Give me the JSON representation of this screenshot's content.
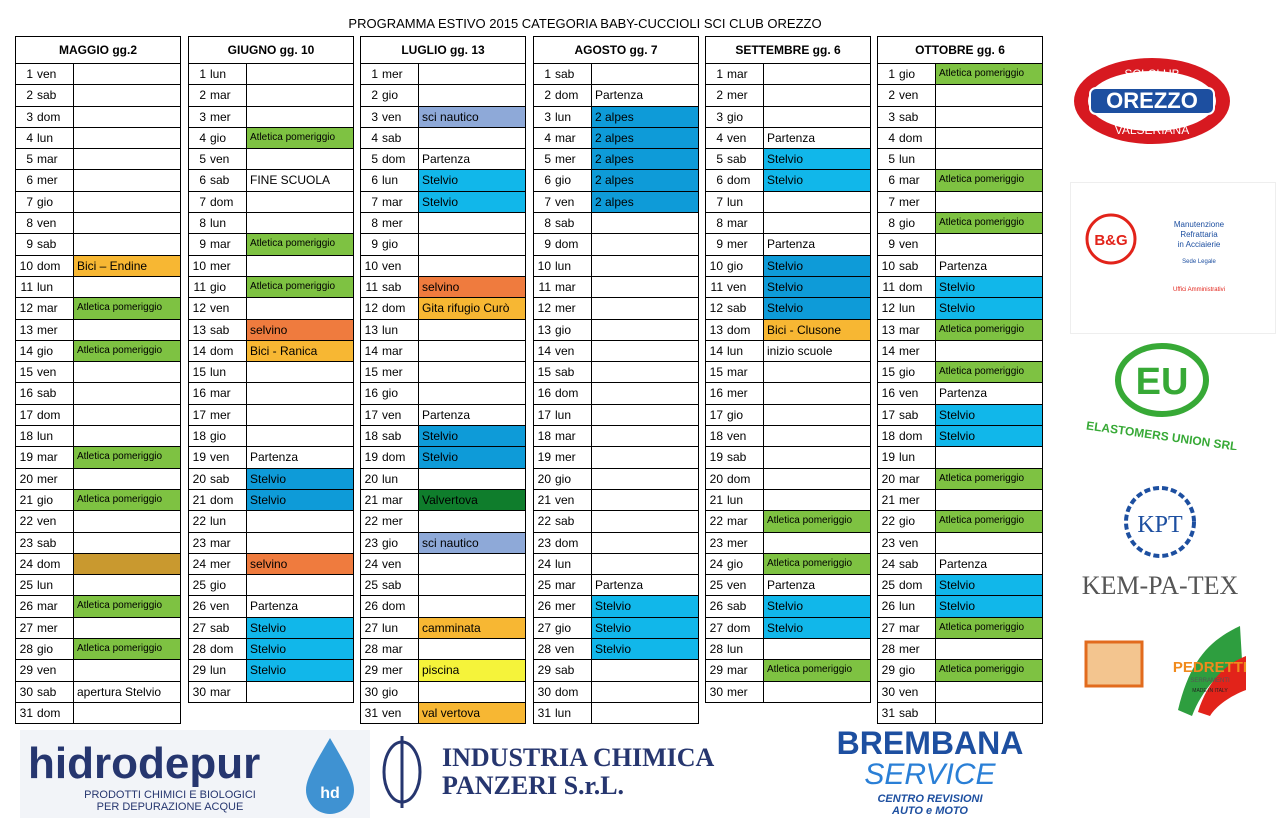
{
  "title": "PROGRAMMA ESTIVO 2015 CATEGORIA BABY-CUCCIOLI SCI CLUB OREZZO",
  "colors": {
    "green": "#7ec242",
    "blue": "#11b7ea",
    "navy": "#0e9bd8",
    "lavender": "#8ea9d8",
    "orange": "#ef7b3e",
    "yellow": "#f7b733",
    "darkgreen": "#0f7d2c",
    "ochre": "#c9992f",
    "lemon": "#f5f33a"
  },
  "months": [
    {
      "name": "MAGGIO gg.2",
      "days": [
        [
          "1",
          "ven",
          "",
          ""
        ],
        [
          "2",
          "sab",
          "",
          ""
        ],
        [
          "3",
          "dom",
          "",
          ""
        ],
        [
          "4",
          "lun",
          "",
          ""
        ],
        [
          "5",
          "mar",
          "",
          ""
        ],
        [
          "6",
          "mer",
          "",
          ""
        ],
        [
          "7",
          "gio",
          "",
          ""
        ],
        [
          "8",
          "ven",
          "",
          ""
        ],
        [
          "9",
          "sab",
          "",
          ""
        ],
        [
          "10",
          "dom",
          "Bici – Endine",
          "yellow"
        ],
        [
          "11",
          "lun",
          "",
          ""
        ],
        [
          "12",
          "mar",
          "Atletica pomeriggio",
          "green"
        ],
        [
          "13",
          "mer",
          "",
          ""
        ],
        [
          "14",
          "gio",
          "Atletica pomeriggio",
          "green"
        ],
        [
          "15",
          "ven",
          "",
          ""
        ],
        [
          "16",
          "sab",
          "",
          ""
        ],
        [
          "17",
          "dom",
          "",
          ""
        ],
        [
          "18",
          "lun",
          "",
          ""
        ],
        [
          "19",
          "mar",
          "Atletica pomeriggio",
          "green"
        ],
        [
          "20",
          "mer",
          "",
          ""
        ],
        [
          "21",
          "gio",
          "Atletica pomeriggio",
          "green"
        ],
        [
          "22",
          "ven",
          "",
          ""
        ],
        [
          "23",
          "sab",
          "",
          ""
        ],
        [
          "24",
          "dom",
          "",
          "ochre"
        ],
        [
          "25",
          "lun",
          "",
          ""
        ],
        [
          "26",
          "mar",
          "Atletica pomeriggio",
          "green"
        ],
        [
          "27",
          "mer",
          "",
          ""
        ],
        [
          "28",
          "gio",
          "Atletica pomeriggio",
          "green"
        ],
        [
          "29",
          "ven",
          "",
          ""
        ],
        [
          "30",
          "sab",
          "apertura Stelvio",
          ""
        ],
        [
          "31",
          "dom",
          "",
          ""
        ]
      ]
    },
    {
      "name": "GIUGNO gg. 10",
      "days": [
        [
          "1",
          "lun",
          "",
          ""
        ],
        [
          "2",
          "mar",
          "",
          ""
        ],
        [
          "3",
          "mer",
          "",
          ""
        ],
        [
          "4",
          "gio",
          "Atletica pomeriggio",
          "green"
        ],
        [
          "5",
          "ven",
          "",
          ""
        ],
        [
          "6",
          "sab",
          "FINE SCUOLA",
          ""
        ],
        [
          "7",
          "dom",
          "",
          ""
        ],
        [
          "8",
          "lun",
          "",
          ""
        ],
        [
          "9",
          "mar",
          "Atletica pomeriggio",
          "green"
        ],
        [
          "10",
          "mer",
          "",
          ""
        ],
        [
          "11",
          "gio",
          "Atletica pomeriggio",
          "green"
        ],
        [
          "12",
          "ven",
          "",
          ""
        ],
        [
          "13",
          "sab",
          "selvino",
          "orange"
        ],
        [
          "14",
          "dom",
          "Bici - Ranica",
          "yellow"
        ],
        [
          "15",
          "lun",
          "",
          ""
        ],
        [
          "16",
          "mar",
          "",
          ""
        ],
        [
          "17",
          "mer",
          "",
          ""
        ],
        [
          "18",
          "gio",
          "",
          ""
        ],
        [
          "19",
          "ven",
          "Partenza",
          ""
        ],
        [
          "20",
          "sab",
          "Stelvio",
          "navy"
        ],
        [
          "21",
          "dom",
          "Stelvio",
          "navy"
        ],
        [
          "22",
          "lun",
          "",
          ""
        ],
        [
          "23",
          "mar",
          "",
          ""
        ],
        [
          "24",
          "mer",
          "selvino",
          "orange"
        ],
        [
          "25",
          "gio",
          "",
          ""
        ],
        [
          "26",
          "ven",
          "Partenza",
          ""
        ],
        [
          "27",
          "sab",
          "Stelvio",
          "blue"
        ],
        [
          "28",
          "dom",
          "Stelvio",
          "blue"
        ],
        [
          "29",
          "lun",
          "Stelvio",
          "blue"
        ],
        [
          "30",
          "mar",
          "",
          ""
        ]
      ]
    },
    {
      "name": "LUGLIO gg. 13",
      "days": [
        [
          "1",
          "mer",
          "",
          ""
        ],
        [
          "2",
          "gio",
          "",
          ""
        ],
        [
          "3",
          "ven",
          "sci nautico",
          "lavender"
        ],
        [
          "4",
          "sab",
          "",
          ""
        ],
        [
          "5",
          "dom",
          "Partenza",
          ""
        ],
        [
          "6",
          "lun",
          "Stelvio",
          "blue"
        ],
        [
          "7",
          "mar",
          "Stelvio",
          "blue"
        ],
        [
          "8",
          "mer",
          "",
          ""
        ],
        [
          "9",
          "gio",
          "",
          ""
        ],
        [
          "10",
          "ven",
          "",
          ""
        ],
        [
          "11",
          "sab",
          "selvino",
          "orange"
        ],
        [
          "12",
          "dom",
          "Gita rifugio Curò",
          "yellow"
        ],
        [
          "13",
          "lun",
          "",
          ""
        ],
        [
          "14",
          "mar",
          "",
          ""
        ],
        [
          "15",
          "mer",
          "",
          ""
        ],
        [
          "16",
          "gio",
          "",
          ""
        ],
        [
          "17",
          "ven",
          "Partenza",
          ""
        ],
        [
          "18",
          "sab",
          "Stelvio",
          "navy"
        ],
        [
          "19",
          "dom",
          "Stelvio",
          "navy"
        ],
        [
          "20",
          "lun",
          "",
          ""
        ],
        [
          "21",
          "mar",
          "Valvertova",
          "darkgreen"
        ],
        [
          "22",
          "mer",
          "",
          ""
        ],
        [
          "23",
          "gio",
          "sci nautico",
          "lavender"
        ],
        [
          "24",
          "ven",
          "",
          ""
        ],
        [
          "25",
          "sab",
          "",
          ""
        ],
        [
          "26",
          "dom",
          "",
          ""
        ],
        [
          "27",
          "lun",
          "camminata",
          "yellow"
        ],
        [
          "28",
          "mar",
          "",
          ""
        ],
        [
          "29",
          "mer",
          "piscina",
          "lemon"
        ],
        [
          "30",
          "gio",
          "",
          ""
        ],
        [
          "31",
          "ven",
          "val vertova",
          "yellow"
        ]
      ]
    },
    {
      "name": "AGOSTO gg. 7",
      "days": [
        [
          "1",
          "sab",
          "",
          ""
        ],
        [
          "2",
          "dom",
          "Partenza",
          ""
        ],
        [
          "3",
          "lun",
          "2 alpes",
          "navy"
        ],
        [
          "4",
          "mar",
          "2 alpes",
          "navy"
        ],
        [
          "5",
          "mer",
          "2 alpes",
          "navy"
        ],
        [
          "6",
          "gio",
          "2 alpes",
          "navy"
        ],
        [
          "7",
          "ven",
          "2 alpes",
          "navy"
        ],
        [
          "8",
          "sab",
          "",
          ""
        ],
        [
          "9",
          "dom",
          "",
          ""
        ],
        [
          "10",
          "lun",
          "",
          ""
        ],
        [
          "11",
          "mar",
          "",
          ""
        ],
        [
          "12",
          "mer",
          "",
          ""
        ],
        [
          "13",
          "gio",
          "",
          ""
        ],
        [
          "14",
          "ven",
          "",
          ""
        ],
        [
          "15",
          "sab",
          "",
          ""
        ],
        [
          "16",
          "dom",
          "",
          ""
        ],
        [
          "17",
          "lun",
          "",
          ""
        ],
        [
          "18",
          "mar",
          "",
          ""
        ],
        [
          "19",
          "mer",
          "",
          ""
        ],
        [
          "20",
          "gio",
          "",
          ""
        ],
        [
          "21",
          "ven",
          "",
          ""
        ],
        [
          "22",
          "sab",
          "",
          ""
        ],
        [
          "23",
          "dom",
          "",
          ""
        ],
        [
          "24",
          "lun",
          "",
          ""
        ],
        [
          "25",
          "mar",
          "Partenza",
          ""
        ],
        [
          "26",
          "mer",
          "Stelvio",
          "blue"
        ],
        [
          "27",
          "gio",
          "Stelvio",
          "blue"
        ],
        [
          "28",
          "ven",
          "Stelvio",
          "blue"
        ],
        [
          "29",
          "sab",
          "",
          ""
        ],
        [
          "30",
          "dom",
          "",
          ""
        ],
        [
          "31",
          "lun",
          "",
          ""
        ]
      ]
    },
    {
      "name": "SETTEMBRE gg. 6",
      "days": [
        [
          "1",
          "mar",
          "",
          ""
        ],
        [
          "2",
          "mer",
          "",
          ""
        ],
        [
          "3",
          "gio",
          "",
          ""
        ],
        [
          "4",
          "ven",
          "Partenza",
          ""
        ],
        [
          "5",
          "sab",
          "Stelvio",
          "blue"
        ],
        [
          "6",
          "dom",
          "Stelvio",
          "blue"
        ],
        [
          "7",
          "lun",
          "",
          ""
        ],
        [
          "8",
          "mar",
          "",
          ""
        ],
        [
          "9",
          "mer",
          "Partenza",
          ""
        ],
        [
          "10",
          "gio",
          "Stelvio",
          "navy"
        ],
        [
          "11",
          "ven",
          "Stelvio",
          "navy"
        ],
        [
          "12",
          "sab",
          "Stelvio",
          "navy"
        ],
        [
          "13",
          "dom",
          "Bici - Clusone",
          "yellow"
        ],
        [
          "14",
          "lun",
          "inizio scuole",
          ""
        ],
        [
          "15",
          "mar",
          "",
          ""
        ],
        [
          "16",
          "mer",
          "",
          ""
        ],
        [
          "17",
          "gio",
          "",
          ""
        ],
        [
          "18",
          "ven",
          "",
          ""
        ],
        [
          "19",
          "sab",
          "",
          ""
        ],
        [
          "20",
          "dom",
          "",
          ""
        ],
        [
          "21",
          "lun",
          "",
          ""
        ],
        [
          "22",
          "mar",
          "Atletica pomeriggio",
          "green"
        ],
        [
          "23",
          "mer",
          "",
          ""
        ],
        [
          "24",
          "gio",
          "Atletica pomeriggio",
          "green"
        ],
        [
          "25",
          "ven",
          "Partenza",
          ""
        ],
        [
          "26",
          "sab",
          "Stelvio",
          "blue"
        ],
        [
          "27",
          "dom",
          "Stelvio",
          "blue"
        ],
        [
          "28",
          "lun",
          "",
          ""
        ],
        [
          "29",
          "mar",
          "Atletica pomeriggio",
          "green"
        ],
        [
          "30",
          "mer",
          "",
          ""
        ]
      ]
    },
    {
      "name": "OTTOBRE gg. 6",
      "days": [
        [
          "1",
          "gio",
          "Atletica pomeriggio",
          "green"
        ],
        [
          "2",
          "ven",
          "",
          ""
        ],
        [
          "3",
          "sab",
          "",
          ""
        ],
        [
          "4",
          "dom",
          "",
          ""
        ],
        [
          "5",
          "lun",
          "",
          ""
        ],
        [
          "6",
          "mar",
          "Atletica pomeriggio",
          "green"
        ],
        [
          "7",
          "mer",
          "",
          ""
        ],
        [
          "8",
          "gio",
          "Atletica pomeriggio",
          "green"
        ],
        [
          "9",
          "ven",
          "",
          ""
        ],
        [
          "10",
          "sab",
          "Partenza",
          ""
        ],
        [
          "11",
          "dom",
          "Stelvio",
          "blue"
        ],
        [
          "12",
          "lun",
          "Stelvio",
          "blue"
        ],
        [
          "13",
          "mar",
          "Atletica pomeriggio",
          "green"
        ],
        [
          "14",
          "mer",
          "",
          ""
        ],
        [
          "15",
          "gio",
          "Atletica pomeriggio",
          "green"
        ],
        [
          "16",
          "ven",
          "Partenza",
          ""
        ],
        [
          "17",
          "sab",
          "Stelvio",
          "blue"
        ],
        [
          "18",
          "dom",
          "Stelvio",
          "blue"
        ],
        [
          "19",
          "lun",
          "",
          ""
        ],
        [
          "20",
          "mar",
          "Atletica pomeriggio",
          "green"
        ],
        [
          "21",
          "mer",
          "",
          ""
        ],
        [
          "22",
          "gio",
          "Atletica pomeriggio",
          "green"
        ],
        [
          "23",
          "ven",
          "",
          ""
        ],
        [
          "24",
          "sab",
          "Partenza",
          ""
        ],
        [
          "25",
          "dom",
          "Stelvio",
          "blue"
        ],
        [
          "26",
          "lun",
          "Stelvio",
          "blue"
        ],
        [
          "27",
          "mar",
          "Atletica pomeriggio",
          "green"
        ],
        [
          "28",
          "mer",
          "",
          ""
        ],
        [
          "29",
          "gio",
          "Atletica pomeriggio",
          "green"
        ],
        [
          "30",
          "ven",
          "",
          ""
        ],
        [
          "31",
          "sab",
          "",
          ""
        ]
      ]
    }
  ],
  "sponsors": {
    "orezzo": {
      "top": "SCI CLUB",
      "main": "OREZZO",
      "bottom": "VALSERIANA"
    },
    "bg": {
      "mark": "B&G",
      "title1": "Manutenzione",
      "title2": "Refrattaria",
      "title3": "in Acciaierie",
      "line1": "Sede Legale",
      "line2": "Uffici Amministrativi"
    },
    "eu": {
      "mark": "EU",
      "name": "ELASTOMERS UNION SRL"
    },
    "kpt": {
      "mark": "KPT",
      "name": "KEM-PA-TEX"
    },
    "pedretti": {
      "name": "PEDRETTI",
      "sub": "SERRAMENTI",
      "made": "MADE IN ITALY"
    },
    "hidrodepur": {
      "name": "hidrodepur",
      "badge": "hd",
      "line1": "PRODOTTI CHIMICI E BIOLOGICI",
      "line2": "PER DEPURAZIONE ACQUE"
    },
    "panzeri": {
      "line1": "INDUSTRIA CHIMICA",
      "line2": "PANZERI S.r.L."
    },
    "brembana": {
      "line1": "BREMBANA",
      "line2": "SERVICE",
      "line3": "CENTRO REVISIONI",
      "line4": "AUTO e MOTO"
    }
  }
}
